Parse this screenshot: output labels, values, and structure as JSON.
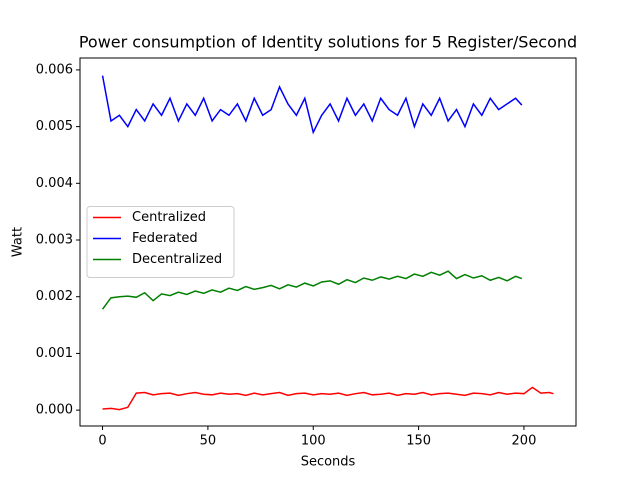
{
  "chart_data": {
    "type": "line",
    "title": "Power consumption of Identity solutions for 5 Register/Second",
    "x_label": "Seconds",
    "y_label": "Watt",
    "xlim": [
      -10.7,
      224.7
    ],
    "ylim": [
      -0.00028,
      0.00621
    ],
    "xticks": [
      0,
      50,
      100,
      150,
      200
    ],
    "yticks": [
      {
        "value": 0,
        "label": "0.000"
      },
      {
        "value": 0.001,
        "label": "0.001"
      },
      {
        "value": 0.002,
        "label": "0.002"
      },
      {
        "value": 0.003,
        "label": "0.003"
      },
      {
        "value": 0.004,
        "label": "0.004"
      },
      {
        "value": 0.005,
        "label": "0.005"
      },
      {
        "value": 0.006,
        "label": "0.006"
      }
    ],
    "grid": false,
    "legend_loc": "center left",
    "series": [
      {
        "name": "Centralized",
        "color": "#ff0000",
        "x": [
          0,
          4,
          8,
          12,
          16,
          20,
          24,
          28,
          32,
          36,
          40,
          44,
          48,
          52,
          56,
          60,
          64,
          68,
          72,
          76,
          80,
          84,
          88,
          92,
          96,
          100,
          104,
          108,
          112,
          116,
          120,
          124,
          128,
          132,
          136,
          140,
          144,
          148,
          152,
          156,
          160,
          164,
          168,
          172,
          176,
          180,
          184,
          188,
          192,
          196,
          200,
          204,
          208,
          212,
          214
        ],
        "values": [
          2e-05,
          3e-05,
          1e-05,
          5e-05,
          0.0003,
          0.00031,
          0.00027,
          0.00029,
          0.0003,
          0.00026,
          0.00029,
          0.00031,
          0.00028,
          0.00027,
          0.0003,
          0.00028,
          0.00029,
          0.00026,
          0.0003,
          0.00027,
          0.00029,
          0.00031,
          0.00026,
          0.00029,
          0.0003,
          0.00027,
          0.00029,
          0.00028,
          0.0003,
          0.00026,
          0.00029,
          0.00031,
          0.00027,
          0.00028,
          0.0003,
          0.00026,
          0.00029,
          0.00028,
          0.00031,
          0.00027,
          0.00029,
          0.0003,
          0.00028,
          0.00026,
          0.0003,
          0.00029,
          0.00027,
          0.00031,
          0.00028,
          0.0003,
          0.00029,
          0.0004,
          0.0003,
          0.00031,
          0.00029
        ]
      },
      {
        "name": "Federated",
        "color": "#0000ff",
        "x": [
          0,
          4,
          8,
          12,
          16,
          20,
          24,
          28,
          32,
          36,
          40,
          44,
          48,
          52,
          56,
          60,
          64,
          68,
          72,
          76,
          80,
          84,
          88,
          92,
          96,
          100,
          104,
          108,
          112,
          116,
          120,
          124,
          128,
          132,
          136,
          140,
          144,
          148,
          152,
          156,
          160,
          164,
          168,
          172,
          176,
          180,
          184,
          188,
          192,
          196,
          199
        ],
        "values": [
          0.0059,
          0.0051,
          0.0052,
          0.005,
          0.0053,
          0.0051,
          0.0054,
          0.0052,
          0.0055,
          0.0051,
          0.0054,
          0.0052,
          0.0055,
          0.0051,
          0.0053,
          0.0052,
          0.0054,
          0.0051,
          0.0055,
          0.0052,
          0.0053,
          0.0057,
          0.0054,
          0.0052,
          0.0055,
          0.0049,
          0.0052,
          0.0054,
          0.0051,
          0.0055,
          0.0052,
          0.0054,
          0.0051,
          0.0055,
          0.0053,
          0.0052,
          0.0055,
          0.005,
          0.0054,
          0.0052,
          0.0055,
          0.0051,
          0.0053,
          0.005,
          0.0054,
          0.0052,
          0.0055,
          0.0053,
          0.0054,
          0.0055,
          0.00538
        ]
      },
      {
        "name": "Decentralized",
        "color": "#008000",
        "x": [
          0,
          4,
          8,
          12,
          16,
          20,
          24,
          28,
          32,
          36,
          40,
          44,
          48,
          52,
          56,
          60,
          64,
          68,
          72,
          76,
          80,
          84,
          88,
          92,
          96,
          100,
          104,
          108,
          112,
          116,
          120,
          124,
          128,
          132,
          136,
          140,
          144,
          148,
          152,
          156,
          160,
          164,
          168,
          172,
          176,
          180,
          184,
          188,
          192,
          196,
          199
        ],
        "values": [
          0.00178,
          0.00198,
          0.002,
          0.00201,
          0.00199,
          0.00207,
          0.00193,
          0.00205,
          0.00202,
          0.00208,
          0.00204,
          0.0021,
          0.00206,
          0.00212,
          0.00208,
          0.00215,
          0.00211,
          0.00218,
          0.00213,
          0.00216,
          0.0022,
          0.00214,
          0.00221,
          0.00217,
          0.00224,
          0.00219,
          0.00226,
          0.00228,
          0.00222,
          0.0023,
          0.00225,
          0.00233,
          0.00229,
          0.00235,
          0.00231,
          0.00236,
          0.00232,
          0.0024,
          0.00236,
          0.00243,
          0.00238,
          0.00245,
          0.00232,
          0.00239,
          0.00233,
          0.00237,
          0.00229,
          0.00234,
          0.00228,
          0.00236,
          0.00232
        ]
      }
    ]
  }
}
